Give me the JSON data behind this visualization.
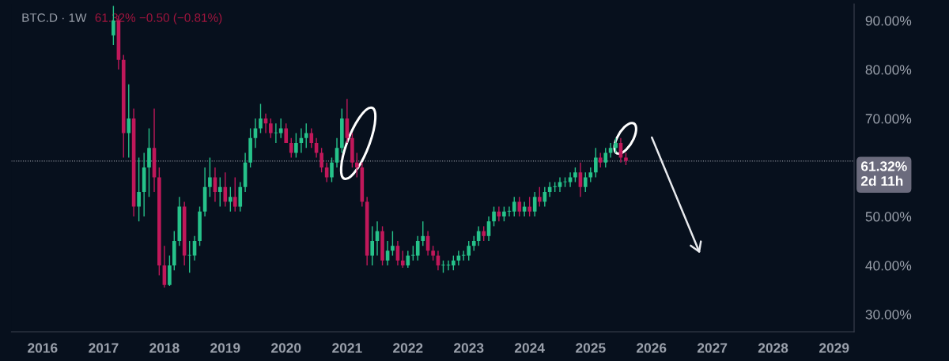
{
  "chart_data": {
    "type": "candlestick",
    "title": "BTC.D · 1W",
    "subtitle": "61.32% −0.50 (−0.81%)",
    "x": [
      "2017-03",
      "2017-04",
      "2017-05",
      "2017-06",
      "2017-07",
      "2017-08",
      "2017-09",
      "2017-10",
      "2017-11",
      "2017-12",
      "2018-01",
      "2018-02",
      "2018-03",
      "2018-04",
      "2018-05",
      "2018-06",
      "2018-07",
      "2018-08",
      "2018-09",
      "2018-10",
      "2018-11",
      "2018-12",
      "2019-01",
      "2019-02",
      "2019-03",
      "2019-04",
      "2019-05",
      "2019-06",
      "2019-07",
      "2019-08",
      "2019-09",
      "2019-10",
      "2019-11",
      "2019-12",
      "2020-01",
      "2020-02",
      "2020-03",
      "2020-04",
      "2020-05",
      "2020-06",
      "2020-07",
      "2020-08",
      "2020-09",
      "2020-10",
      "2020-11",
      "2020-12",
      "2021-01",
      "2021-02",
      "2021-03",
      "2021-04",
      "2021-05",
      "2021-06",
      "2021-07",
      "2021-08",
      "2021-09",
      "2021-10",
      "2021-11",
      "2021-12",
      "2022-01",
      "2022-02",
      "2022-03",
      "2022-04",
      "2022-05",
      "2022-06",
      "2022-07",
      "2022-08",
      "2022-09",
      "2022-10",
      "2022-11",
      "2022-12",
      "2023-01",
      "2023-02",
      "2023-03",
      "2023-04",
      "2023-05",
      "2023-06",
      "2023-07",
      "2023-08",
      "2023-09",
      "2023-10",
      "2023-11",
      "2023-12",
      "2024-01",
      "2024-02",
      "2024-03",
      "2024-04",
      "2024-05",
      "2024-06",
      "2024-07",
      "2024-08",
      "2024-09",
      "2024-10",
      "2024-11",
      "2024-12",
      "2025-01",
      "2025-02",
      "2025-03",
      "2025-04",
      "2025-05",
      "2025-06",
      "2025-07",
      "2025-08"
    ],
    "ohlc": [
      [
        87,
        93,
        85,
        90
      ],
      [
        90,
        91,
        80,
        82
      ],
      [
        82,
        83,
        62,
        67
      ],
      [
        67,
        77,
        62,
        70
      ],
      [
        70,
        72,
        50,
        52
      ],
      [
        52,
        62,
        49,
        55
      ],
      [
        55,
        63,
        50,
        60
      ],
      [
        60,
        68,
        54,
        64
      ],
      [
        64,
        72,
        55,
        58
      ],
      [
        58,
        60,
        38,
        40
      ],
      [
        40,
        44,
        35.5,
        36
      ],
      [
        36,
        42,
        35.8,
        40
      ],
      [
        40,
        47,
        39,
        45
      ],
      [
        45,
        54,
        44,
        52
      ],
      [
        52,
        53,
        40,
        42
      ],
      [
        42,
        45,
        38.5,
        42
      ],
      [
        42,
        46,
        41,
        45
      ],
      [
        45,
        52,
        44,
        51
      ],
      [
        51,
        60,
        50,
        56
      ],
      [
        56,
        62,
        54,
        58
      ],
      [
        58,
        60,
        53,
        55
      ],
      [
        55,
        58,
        52,
        56
      ],
      [
        56,
        59,
        52,
        53
      ],
      [
        53,
        56,
        51,
        54
      ],
      [
        54,
        58,
        51,
        52
      ],
      [
        52,
        57,
        51,
        56
      ],
      [
        56,
        63,
        55,
        61
      ],
      [
        61,
        68,
        60,
        66
      ],
      [
        66,
        70,
        64,
        68
      ],
      [
        68,
        73,
        67,
        70
      ],
      [
        70,
        71,
        67,
        69
      ],
      [
        69,
        70,
        66,
        67
      ],
      [
        67,
        69,
        65,
        67
      ],
      [
        67,
        70,
        66,
        68
      ],
      [
        68,
        69,
        65,
        65
      ],
      [
        65,
        66,
        62,
        63
      ],
      [
        63,
        67,
        62,
        65
      ],
      [
        65,
        68,
        63,
        66
      ],
      [
        66,
        69,
        64,
        67
      ],
      [
        67,
        68,
        64,
        65
      ],
      [
        65,
        66,
        62,
        63
      ],
      [
        63,
        64,
        59,
        60
      ],
      [
        60,
        61,
        57,
        58
      ],
      [
        58,
        62,
        57,
        61
      ],
      [
        61,
        66,
        60,
        64
      ],
      [
        64,
        72,
        63,
        70
      ],
      [
        70,
        74,
        65,
        66
      ],
      [
        66,
        67,
        60,
        61
      ],
      [
        61,
        63,
        58,
        60
      ],
      [
        60,
        61,
        52,
        53
      ],
      [
        53,
        54,
        40,
        42
      ],
      [
        42,
        48,
        40,
        45
      ],
      [
        45,
        49,
        42,
        47
      ],
      [
        47,
        48,
        40,
        41
      ],
      [
        41,
        45,
        40,
        43
      ],
      [
        43,
        47,
        42,
        44
      ],
      [
        44,
        45,
        40,
        41
      ],
      [
        41,
        43,
        39.5,
        40
      ],
      [
        40,
        43,
        39.5,
        42
      ],
      [
        42,
        44,
        41,
        42
      ],
      [
        42,
        46,
        41,
        45
      ],
      [
        45,
        49,
        44,
        46
      ],
      [
        46,
        47,
        42,
        43
      ],
      [
        43,
        44,
        41,
        42
      ],
      [
        42,
        43,
        39,
        40
      ],
      [
        40,
        41,
        38.5,
        40
      ],
      [
        40,
        41,
        39,
        40
      ],
      [
        40,
        42,
        39,
        41
      ],
      [
        41,
        43,
        40,
        42
      ],
      [
        42,
        43,
        41,
        42
      ],
      [
        42,
        45,
        41,
        44
      ],
      [
        44,
        46,
        43,
        45
      ],
      [
        45,
        48,
        44,
        47
      ],
      [
        47,
        48,
        45,
        46
      ],
      [
        46,
        50,
        45,
        49
      ],
      [
        49,
        52,
        48,
        51
      ],
      [
        51,
        52,
        49,
        50
      ],
      [
        50,
        52,
        49,
        51
      ],
      [
        51,
        52,
        50,
        51
      ],
      [
        51,
        54,
        50,
        53
      ],
      [
        53,
        54,
        50,
        51
      ],
      [
        51,
        53,
        50,
        52
      ],
      [
        52,
        54,
        50,
        51
      ],
      [
        51,
        55,
        50,
        54
      ],
      [
        54,
        56,
        52,
        53
      ],
      [
        53,
        56,
        52,
        55
      ],
      [
        55,
        57,
        54,
        56
      ],
      [
        56,
        57,
        55,
        56
      ],
      [
        56,
        58,
        55,
        57
      ],
      [
        57,
        58,
        56,
        57
      ],
      [
        57,
        59,
        56,
        58
      ],
      [
        58,
        60,
        57,
        59
      ],
      [
        59,
        61,
        54,
        56
      ],
      [
        56,
        59,
        55,
        58
      ],
      [
        58,
        60,
        57,
        59
      ],
      [
        59,
        64,
        58,
        62
      ],
      [
        62,
        63,
        60,
        61
      ],
      [
        61,
        64,
        60,
        63
      ],
      [
        63,
        65,
        62,
        64
      ],
      [
        64,
        66,
        63,
        65
      ],
      [
        65,
        66,
        61,
        62
      ],
      [
        62,
        63,
        60.5,
        61.32
      ]
    ],
    "colors": [
      "#26c28a",
      "#c0185a",
      "#c0185a",
      "#26c28a",
      "#c0185a",
      "#26c28a",
      "#26c28a",
      "#26c28a",
      "#c0185a",
      "#c0185a",
      "#c0185a",
      "#26c28a",
      "#26c28a",
      "#26c28a",
      "#c0185a",
      "#26c28a",
      "#26c28a",
      "#26c28a",
      "#26c28a",
      "#26c28a",
      "#c0185a",
      "#26c28a",
      "#c0185a",
      "#26c28a",
      "#c0185a",
      "#26c28a",
      "#26c28a",
      "#26c28a",
      "#26c28a",
      "#26c28a",
      "#c0185a",
      "#c0185a",
      "#26c28a",
      "#26c28a",
      "#c0185a",
      "#c0185a",
      "#26c28a",
      "#26c28a",
      "#26c28a",
      "#c0185a",
      "#c0185a",
      "#c0185a",
      "#c0185a",
      "#26c28a",
      "#26c28a",
      "#26c28a",
      "#c0185a",
      "#c0185a",
      "#c0185a",
      "#c0185a",
      "#c0185a",
      "#26c28a",
      "#26c28a",
      "#c0185a",
      "#26c28a",
      "#26c28a",
      "#c0185a",
      "#c0185a",
      "#26c28a",
      "#26c28a",
      "#26c28a",
      "#26c28a",
      "#c0185a",
      "#c0185a",
      "#c0185a",
      "#26c28a",
      "#26c28a",
      "#26c28a",
      "#26c28a",
      "#26c28a",
      "#26c28a",
      "#26c28a",
      "#26c28a",
      "#c0185a",
      "#26c28a",
      "#26c28a",
      "#c0185a",
      "#26c28a",
      "#26c28a",
      "#26c28a",
      "#c0185a",
      "#26c28a",
      "#c0185a",
      "#26c28a",
      "#c0185a",
      "#26c28a",
      "#26c28a",
      "#26c28a",
      "#26c28a",
      "#26c28a",
      "#26c28a",
      "#26c28a",
      "#c0185a",
      "#26c28a",
      "#26c28a",
      "#26c28a",
      "#c0185a",
      "#26c28a",
      "#26c28a",
      "#26c28a",
      "#c0185a",
      "#c0185a"
    ],
    "xlim": [
      "2015-06-28",
      "2029-05-01"
    ],
    "xticks": [
      "2016",
      "2017",
      "2018",
      "2019",
      "2020",
      "2021",
      "2022",
      "2023",
      "2024",
      "2025",
      "2026",
      "2027",
      "2028",
      "2029"
    ],
    "ylim": [
      26.45,
      93.39
    ],
    "yticks": [
      {
        "value": 30,
        "label": "30.00%"
      },
      {
        "value": 40,
        "label": "40.00%"
      },
      {
        "value": 50,
        "label": "50.00%"
      },
      {
        "value": 70,
        "label": "70.00%"
      },
      {
        "value": 80,
        "label": "80.00%"
      },
      {
        "value": 90,
        "label": "90.00%"
      }
    ],
    "ref_lines": [
      {
        "axis": "y",
        "value": 61.32,
        "label": "61.32%\n2d 11h",
        "color": "#8a8e99",
        "line_style": "dotted"
      }
    ],
    "grid": false
  }
}
